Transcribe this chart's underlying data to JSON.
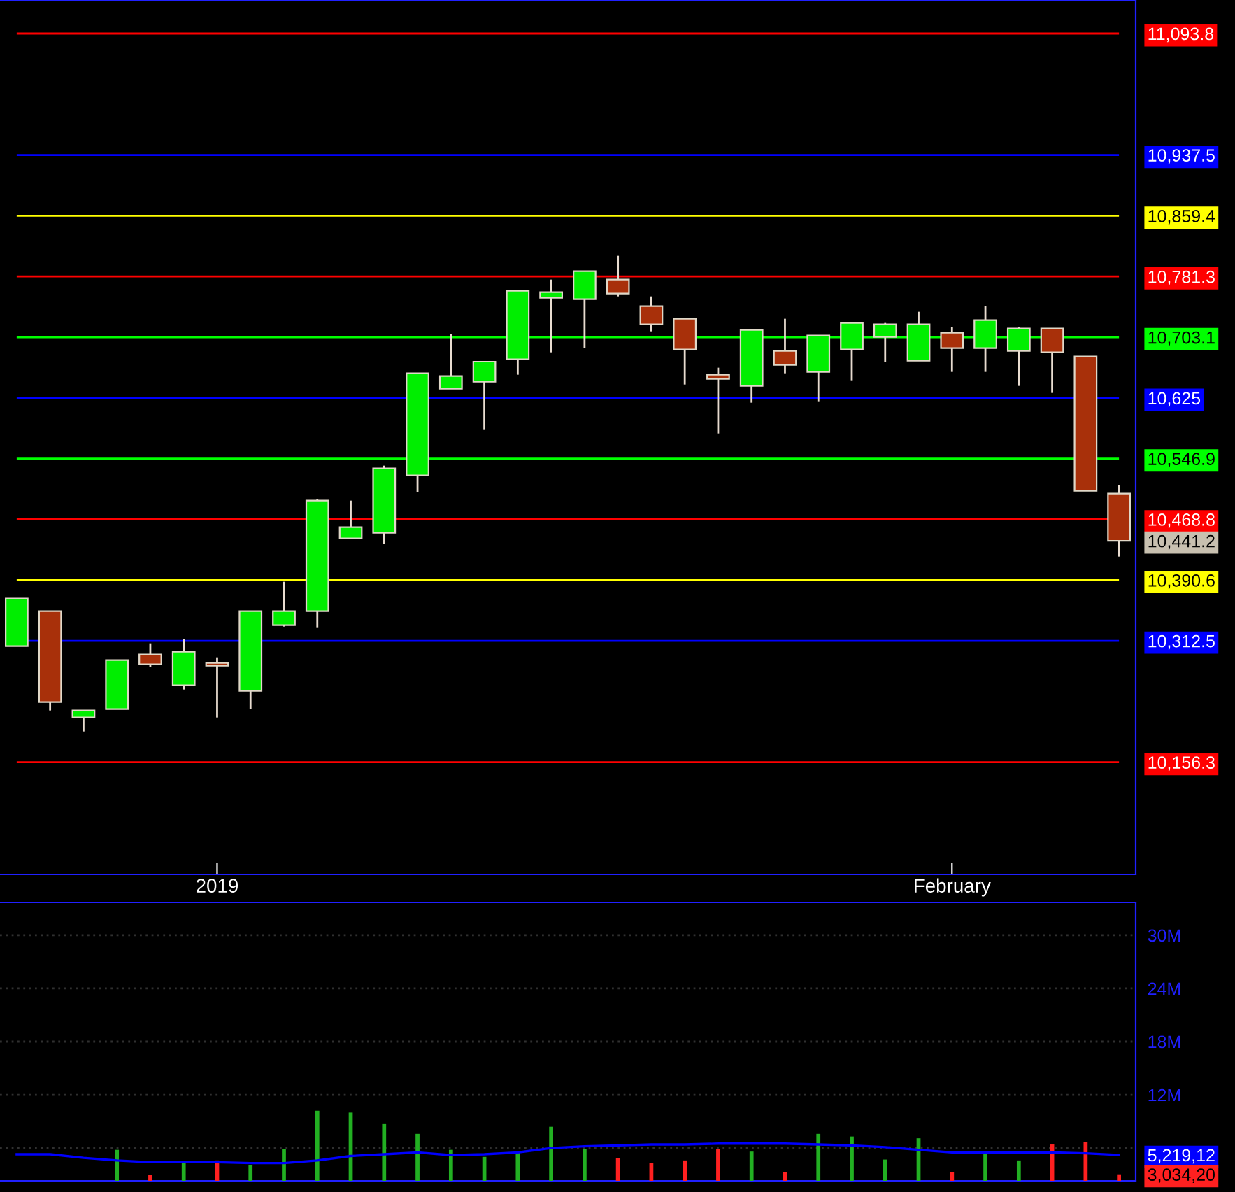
{
  "chart_data": [
    {
      "type": "candlestick",
      "categories": [
        null,
        null,
        null,
        null,
        null,
        null,
        "2019",
        null,
        null,
        null,
        null,
        null,
        null,
        null,
        null,
        null,
        null,
        null,
        null,
        null,
        null,
        null,
        null,
        null,
        null,
        null,
        null,
        null,
        "February",
        null,
        null,
        null,
        null,
        null
      ],
      "ohlc": [
        [
          10305.7,
          10366.9,
          10305.7,
          10366.9
        ],
        [
          10350.7,
          10350.7,
          10222.9,
          10233.7
        ],
        [
          10213.9,
          10222.9,
          10195.9,
          10222.9
        ],
        [
          10224.7,
          10287.7,
          10224.7,
          10287.7
        ],
        [
          10294.9,
          10309.3,
          10278.7,
          10282.3
        ],
        [
          10255.3,
          10314.7,
          10249.9,
          10298.5
        ],
        [
          10284.1,
          10291.3,
          10213.9,
          10280.5
        ],
        [
          10248.1,
          10350.7,
          10224.7,
          10350.7
        ],
        [
          10332.7,
          10388.5,
          10330.9,
          10350.7
        ],
        [
          10350.7,
          10494.7,
          10329.1,
          10492.9
        ],
        [
          10444.3,
          10492.9,
          10444.3,
          10458.7
        ],
        [
          10451.5,
          10537.9,
          10437.1,
          10534.3
        ],
        [
          10525.3,
          10656.7,
          10503.7,
          10656.7
        ],
        [
          10636.9,
          10707.1,
          10636.9,
          10653.1
        ],
        [
          10645.9,
          10671.7,
          10584.7,
          10671.7
        ],
        [
          10674.7,
          10762.9,
          10654.9,
          10762.9
        ],
        [
          10753.9,
          10777.3,
          10683.7,
          10761.1
        ],
        [
          10752.1,
          10788.1,
          10689.1,
          10788.1
        ],
        [
          10777.3,
          10807.9,
          10755.7,
          10759.3
        ],
        [
          10743.1,
          10755.7,
          10710.7,
          10719.7
        ],
        [
          10726.9,
          10726.9,
          10642.3,
          10687.3
        ],
        [
          10654.9,
          10663.9,
          10579.3,
          10649.5
        ],
        [
          10640.5,
          10712.5,
          10618.9,
          10712.5
        ],
        [
          10685.5,
          10726.9,
          10656.7,
          10667.5
        ],
        [
          10658.5,
          10705.3,
          10620.7,
          10705.3
        ],
        [
          10687.3,
          10721.5,
          10647.7,
          10721.5
        ],
        [
          10703.5,
          10721.5,
          10671.1,
          10719.7
        ],
        [
          10672.9,
          10735.9,
          10672.9,
          10719.7
        ],
        [
          10708.9,
          10716.1,
          10658.5,
          10689.1
        ],
        [
          10689.1,
          10743.1,
          10658.5,
          10725.1
        ],
        [
          10685.5,
          10716.1,
          10640.5,
          10714.3
        ],
        [
          10714.3,
          10714.3,
          10631.5,
          10683.7
        ],
        [
          10678.3,
          10678.3,
          10505.5,
          10505.5
        ],
        [
          10501.9,
          10512.7,
          10420.9,
          10441.2
        ]
      ],
      "ylim": [
        10012,
        11137
      ],
      "yticks": [
        {
          "value": 11093.8,
          "label": "11,093.8"
        },
        {
          "value": 10937.5,
          "label": "10,937.5"
        },
        {
          "value": 10859.4,
          "label": "10,859.4"
        },
        {
          "value": 10781.3,
          "label": "10,781.3"
        },
        {
          "value": 10703.1,
          "label": "10,703.1"
        },
        {
          "value": 10625,
          "label": "10,625"
        },
        {
          "value": 10546.9,
          "label": "10,546.9"
        },
        {
          "value": 10468.8,
          "label": "10,468.8"
        },
        {
          "value": 10441.2,
          "label": "10,441.2"
        },
        {
          "value": 10390.6,
          "label": "10,390.6"
        },
        {
          "value": 10312.5,
          "label": "10,312.5"
        },
        {
          "value": 10156.3,
          "label": "10,156.3"
        }
      ],
      "ref_lines": [
        {
          "axis": "y",
          "value": 11093.8,
          "color": "#ff0000"
        },
        {
          "axis": "y",
          "value": 10937.5,
          "color": "#0000ff"
        },
        {
          "axis": "y",
          "value": 10859.4,
          "color": "#ffff00"
        },
        {
          "axis": "y",
          "value": 10781.3,
          "color": "#ff0000"
        },
        {
          "axis": "y",
          "value": 10703.1,
          "color": "#00ff00"
        },
        {
          "axis": "y",
          "value": 10625,
          "color": "#0000ff"
        },
        {
          "axis": "y",
          "value": 10546.9,
          "color": "#00ff00"
        },
        {
          "axis": "y",
          "value": 10468.8,
          "color": "#ff0000"
        },
        {
          "axis": "y",
          "value": 10390.6,
          "color": "#ffff00"
        },
        {
          "axis": "y",
          "value": 10312.5,
          "color": "#0000ff"
        },
        {
          "axis": "y",
          "value": 10156.3,
          "color": "#ff0000"
        }
      ]
    },
    {
      "type": "bar",
      "categories": [
        null,
        null,
        null,
        null,
        null,
        null,
        null,
        null,
        null,
        null,
        null,
        null,
        null,
        null,
        null,
        null,
        null,
        null,
        null,
        null,
        null,
        null,
        null,
        null,
        null,
        null,
        null,
        null,
        null,
        null,
        null,
        null,
        null,
        null
      ],
      "series": [
        {
          "type": "bar",
          "values": [
            null,
            null,
            null,
            5.8,
            3.0,
            4.4,
            4.6,
            4.1,
            5.9,
            10.2,
            10.0,
            8.7,
            7.6,
            5.8,
            5.0,
            5.5,
            8.4,
            5.9,
            4.9,
            4.3,
            4.6,
            5.9,
            5.6,
            3.3,
            7.6,
            7.3,
            4.7,
            7.1,
            3.3,
            5.5,
            4.6,
            6.4,
            6.7,
            3.034
          ],
          "colors": [
            "#22b022",
            "#ff2020",
            "#22b022",
            "#22b022",
            "#ff2020",
            "#22b022",
            "#ff2020",
            "#22b022",
            "#22b022",
            "#22b022",
            "#22b022",
            "#22b022",
            "#22b022",
            "#22b022",
            "#22b022",
            "#22b022",
            "#22b022",
            "#22b022",
            "#ff2020",
            "#ff2020",
            "#ff2020",
            "#ff2020",
            "#22b022",
            "#ff2020",
            "#22b022",
            "#22b022",
            "#22b022",
            "#22b022",
            "#ff2020",
            "#22b022",
            "#22b022",
            "#ff2020",
            "#ff2020",
            "#ff2020"
          ]
        },
        {
          "type": "line",
          "color": "#0000ff",
          "values": [
            5.3,
            5.3,
            4.9,
            4.6,
            4.4,
            4.4,
            4.4,
            4.3,
            4.3,
            4.6,
            5.1,
            5.3,
            5.5,
            5.2,
            5.3,
            5.5,
            6.0,
            6.2,
            6.3,
            6.4,
            6.4,
            6.5,
            6.5,
            6.5,
            6.4,
            6.3,
            6.1,
            5.8,
            5.5,
            5.5,
            5.5,
            5.5,
            5.4,
            5.219
          ]
        }
      ],
      "ylim": [
        2.3,
        33.7
      ],
      "yticks": [
        {
          "value": 30,
          "label": "30M"
        },
        {
          "value": 24,
          "label": "24M"
        },
        {
          "value": 18,
          "label": "18M"
        },
        {
          "value": 12,
          "label": "12M"
        },
        {
          "value": 6,
          "label": null
        },
        {
          "value": 5.219,
          "label": "5,219,12"
        },
        {
          "value": 3.034,
          "label": "3,034,20"
        }
      ],
      "grid": "y",
      "tick_labels": "y"
    }
  ]
}
